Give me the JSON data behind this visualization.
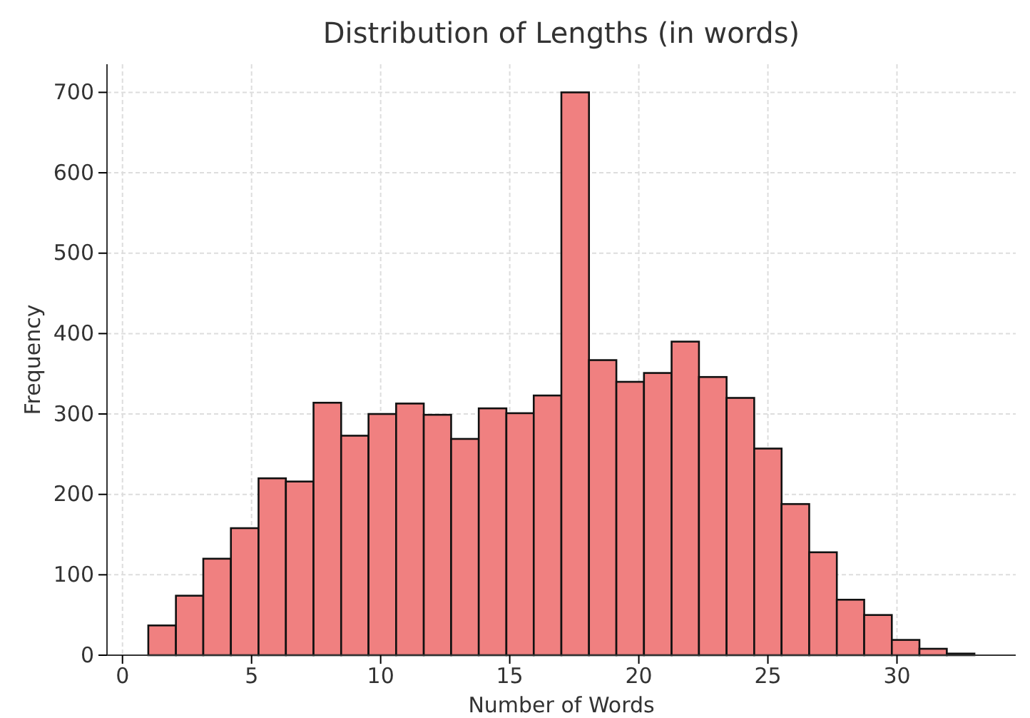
{
  "chart_data": {
    "type": "histogram",
    "title": "Distribution of Lengths (in words)",
    "xlabel": "Number of Words",
    "ylabel": "Frequency",
    "bins": [
      1,
      2.07,
      3.13,
      4.2,
      5.27,
      6.33,
      7.4,
      8.47,
      9.53,
      10.6,
      11.67,
      12.73,
      13.8,
      14.87,
      15.93,
      17,
      18.07,
      19.13,
      20.2,
      21.27,
      22.33,
      23.4,
      24.47,
      25.53,
      26.6,
      27.67,
      28.73,
      29.8,
      30.87,
      31.93,
      33
    ],
    "values": [
      37,
      74,
      120,
      158,
      220,
      216,
      314,
      273,
      300,
      313,
      299,
      269,
      307,
      301,
      323,
      700,
      367,
      340,
      351,
      390,
      346,
      320,
      257,
      188,
      128,
      69,
      50,
      19,
      8,
      2
    ],
    "color": "#f08080",
    "xlim": [
      -0.6,
      34.6
    ],
    "xticks": [
      0,
      5,
      10,
      15,
      20,
      25,
      30
    ],
    "ylim": [
      0,
      735
    ],
    "yticks": [
      0,
      100,
      200,
      300,
      400,
      500,
      600,
      700
    ],
    "grid": true
  }
}
